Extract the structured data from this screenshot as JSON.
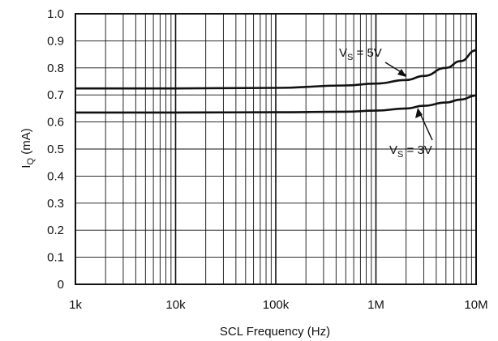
{
  "chart_data": {
    "type": "line",
    "title": "",
    "xlabel": "SCL Frequency (Hz)",
    "ylabel_main": "I",
    "ylabel_sub": "Q",
    "ylabel_unit": " (mA)",
    "xscale": "log",
    "xlim": [
      1000,
      10000000
    ],
    "ylim": [
      0,
      1.0
    ],
    "grid": true,
    "x_ticks": [
      1000,
      10000,
      100000,
      1000000,
      10000000
    ],
    "x_tick_labels": [
      "1k",
      "10k",
      "100k",
      "1M",
      "10M"
    ],
    "y_ticks": [
      0,
      0.1,
      0.2,
      0.3,
      0.4,
      0.5,
      0.6,
      0.7,
      0.8,
      0.9,
      1.0
    ],
    "y_tick_labels": [
      "0",
      "0.1",
      "0.2",
      "0.3",
      "0.4",
      "0.5",
      "0.6",
      "0.7",
      "0.8",
      "0.9",
      "1.0"
    ],
    "series": [
      {
        "name": "V_S = 5V",
        "label_main": "V",
        "label_sub": "S",
        "label_value": " = 5V",
        "x": [
          1000,
          10000,
          100000,
          500000,
          1000000,
          2000000,
          3000000,
          5000000,
          7000000,
          10000000
        ],
        "y": [
          0.724,
          0.724,
          0.726,
          0.735,
          0.742,
          0.755,
          0.77,
          0.8,
          0.825,
          0.865
        ]
      },
      {
        "name": "V_S = 3V",
        "label_main": "V",
        "label_sub": "S",
        "label_value": " = 3V",
        "x": [
          1000,
          10000,
          100000,
          500000,
          1000000,
          2000000,
          3000000,
          5000000,
          7000000,
          10000000
        ],
        "y": [
          0.635,
          0.635,
          0.636,
          0.638,
          0.642,
          0.65,
          0.66,
          0.672,
          0.683,
          0.698
        ]
      }
    ]
  }
}
